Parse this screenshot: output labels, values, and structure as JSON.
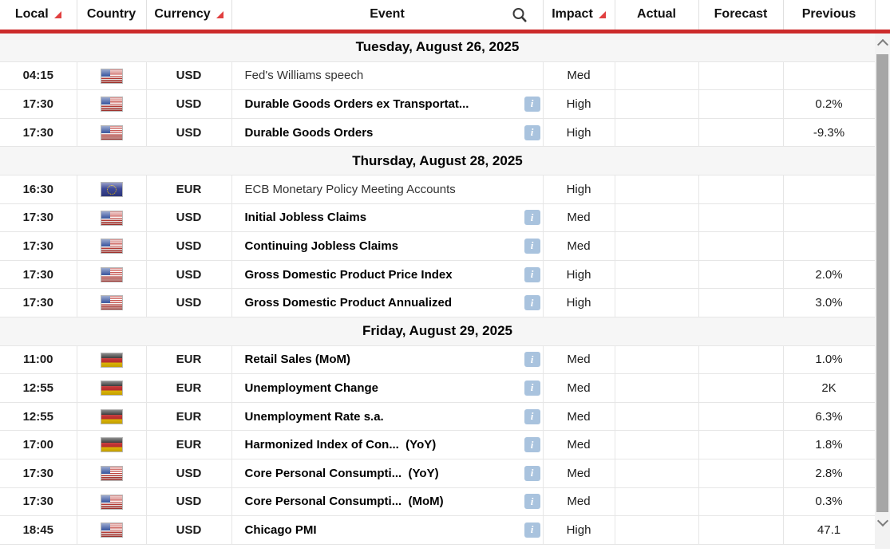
{
  "table": {
    "columns": [
      {
        "label": "Local",
        "sorted": true,
        "has_search": false
      },
      {
        "label": "Country",
        "sorted": false,
        "has_search": false
      },
      {
        "label": "Currency",
        "sorted": true,
        "has_search": false
      },
      {
        "label": "Event",
        "sorted": false,
        "has_search": true
      },
      {
        "label": "Impact",
        "sorted": true,
        "has_search": false
      },
      {
        "label": "Actual",
        "sorted": false,
        "has_search": false
      },
      {
        "label": "Forecast",
        "sorted": false,
        "has_search": false
      },
      {
        "label": "Previous",
        "sorted": false,
        "has_search": false
      }
    ],
    "sections": [
      {
        "date": "Tuesday, August 26, 2025",
        "rows": [
          {
            "time": "04:15",
            "country": "us",
            "currency": "USD",
            "event": "Fed's Williams speech",
            "event_bold": false,
            "info_icon": false,
            "impact": "Med",
            "actual": "",
            "forecast": "",
            "previous": ""
          },
          {
            "time": "17:30",
            "country": "us",
            "currency": "USD",
            "event": "Durable Goods Orders ex Transportat...",
            "event_bold": true,
            "info_icon": true,
            "impact": "High",
            "actual": "",
            "forecast": "",
            "previous": "0.2%"
          },
          {
            "time": "17:30",
            "country": "us",
            "currency": "USD",
            "event": "Durable Goods Orders",
            "event_bold": true,
            "info_icon": true,
            "impact": "High",
            "actual": "",
            "forecast": "",
            "previous": "-9.3%"
          }
        ]
      },
      {
        "date": "Thursday, August 28, 2025",
        "rows": [
          {
            "time": "16:30",
            "country": "eu",
            "currency": "EUR",
            "event": "ECB Monetary Policy Meeting Accounts",
            "event_bold": false,
            "info_icon": false,
            "impact": "High",
            "actual": "",
            "forecast": "",
            "previous": ""
          },
          {
            "time": "17:30",
            "country": "us",
            "currency": "USD",
            "event": "Initial Jobless Claims",
            "event_bold": true,
            "info_icon": true,
            "impact": "Med",
            "actual": "",
            "forecast": "",
            "previous": ""
          },
          {
            "time": "17:30",
            "country": "us",
            "currency": "USD",
            "event": "Continuing Jobless Claims",
            "event_bold": true,
            "info_icon": true,
            "impact": "Med",
            "actual": "",
            "forecast": "",
            "previous": ""
          },
          {
            "time": "17:30",
            "country": "us",
            "currency": "USD",
            "event": "Gross Domestic Product Price Index",
            "event_bold": true,
            "info_icon": true,
            "impact": "High",
            "actual": "",
            "forecast": "",
            "previous": "2.0%"
          },
          {
            "time": "17:30",
            "country": "us",
            "currency": "USD",
            "event": "Gross Domestic Product Annualized",
            "event_bold": true,
            "info_icon": true,
            "impact": "High",
            "actual": "",
            "forecast": "",
            "previous": "3.0%"
          }
        ]
      },
      {
        "date": "Friday, August 29, 2025",
        "rows": [
          {
            "time": "11:00",
            "country": "de",
            "currency": "EUR",
            "event": "Retail Sales (MoM)",
            "event_bold": true,
            "info_icon": true,
            "impact": "Med",
            "actual": "",
            "forecast": "",
            "previous": "1.0%"
          },
          {
            "time": "12:55",
            "country": "de",
            "currency": "EUR",
            "event": "Unemployment Change",
            "event_bold": true,
            "info_icon": true,
            "impact": "Med",
            "actual": "",
            "forecast": "",
            "previous": "2K"
          },
          {
            "time": "12:55",
            "country": "de",
            "currency": "EUR",
            "event": "Unemployment Rate s.a.",
            "event_bold": true,
            "info_icon": true,
            "impact": "Med",
            "actual": "",
            "forecast": "",
            "previous": "6.3%"
          },
          {
            "time": "17:00",
            "country": "de",
            "currency": "EUR",
            "event": "Harmonized Index of Con...  (YoY)",
            "event_bold": true,
            "info_icon": true,
            "impact": "Med",
            "actual": "",
            "forecast": "",
            "previous": "1.8%"
          },
          {
            "time": "17:30",
            "country": "us",
            "currency": "USD",
            "event": "Core Personal Consumpti...  (YoY)",
            "event_bold": true,
            "info_icon": true,
            "impact": "Med",
            "actual": "",
            "forecast": "",
            "previous": "2.8%"
          },
          {
            "time": "17:30",
            "country": "us",
            "currency": "USD",
            "event": "Core Personal Consumpti...  (MoM)",
            "event_bold": true,
            "info_icon": true,
            "impact": "Med",
            "actual": "",
            "forecast": "",
            "previous": "0.3%"
          },
          {
            "time": "18:45",
            "country": "us",
            "currency": "USD",
            "event": "Chicago PMI",
            "event_bold": true,
            "info_icon": true,
            "impact": "High",
            "actual": "",
            "forecast": "",
            "previous": "47.1"
          }
        ]
      }
    ]
  },
  "icons": {
    "info_glyph": "i",
    "search": "magnifier",
    "sort": "red-corner-triangle",
    "scroll_up": "chevron-up",
    "scroll_down": "chevron-down"
  },
  "colors": {
    "accent_red": "#cc2b2b",
    "sort_arrow_red": "#e14040",
    "info_icon_bg": "#a9c3de",
    "date_row_bg": "#f6f6f6",
    "scroll_thumb": "#a6a6a6"
  }
}
